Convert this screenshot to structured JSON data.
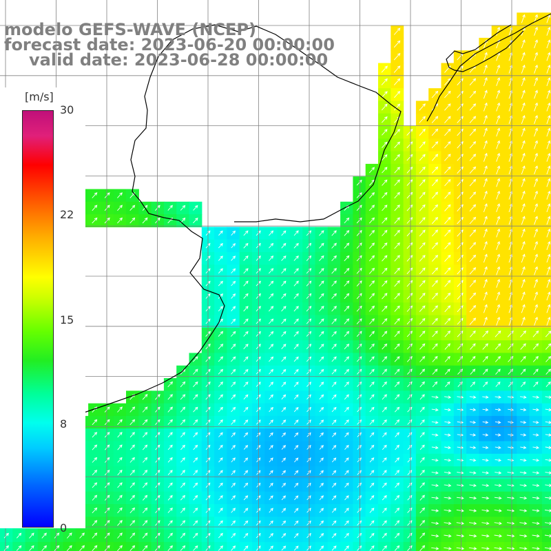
{
  "title": {
    "model": "modelo GEFS-WAVE (NCEP)",
    "forecast": "forecast date: 2023-06-20 00:00:00",
    "valid": "valid date: 2023-06-28 00:00:00"
  },
  "legend": {
    "unit": "[m/s]",
    "ticks": [
      "30",
      "22",
      "15",
      "8",
      "0"
    ]
  },
  "field": {
    "variable": "wind speed and direction",
    "unit": "m/s",
    "scale_min": 0,
    "scale_max": 30
  },
  "colors": {
    "land": "#ffffff",
    "grid": "#808080",
    "coastline": "#000000",
    "title_text": "#808080",
    "arrow": "#ffffff"
  }
}
